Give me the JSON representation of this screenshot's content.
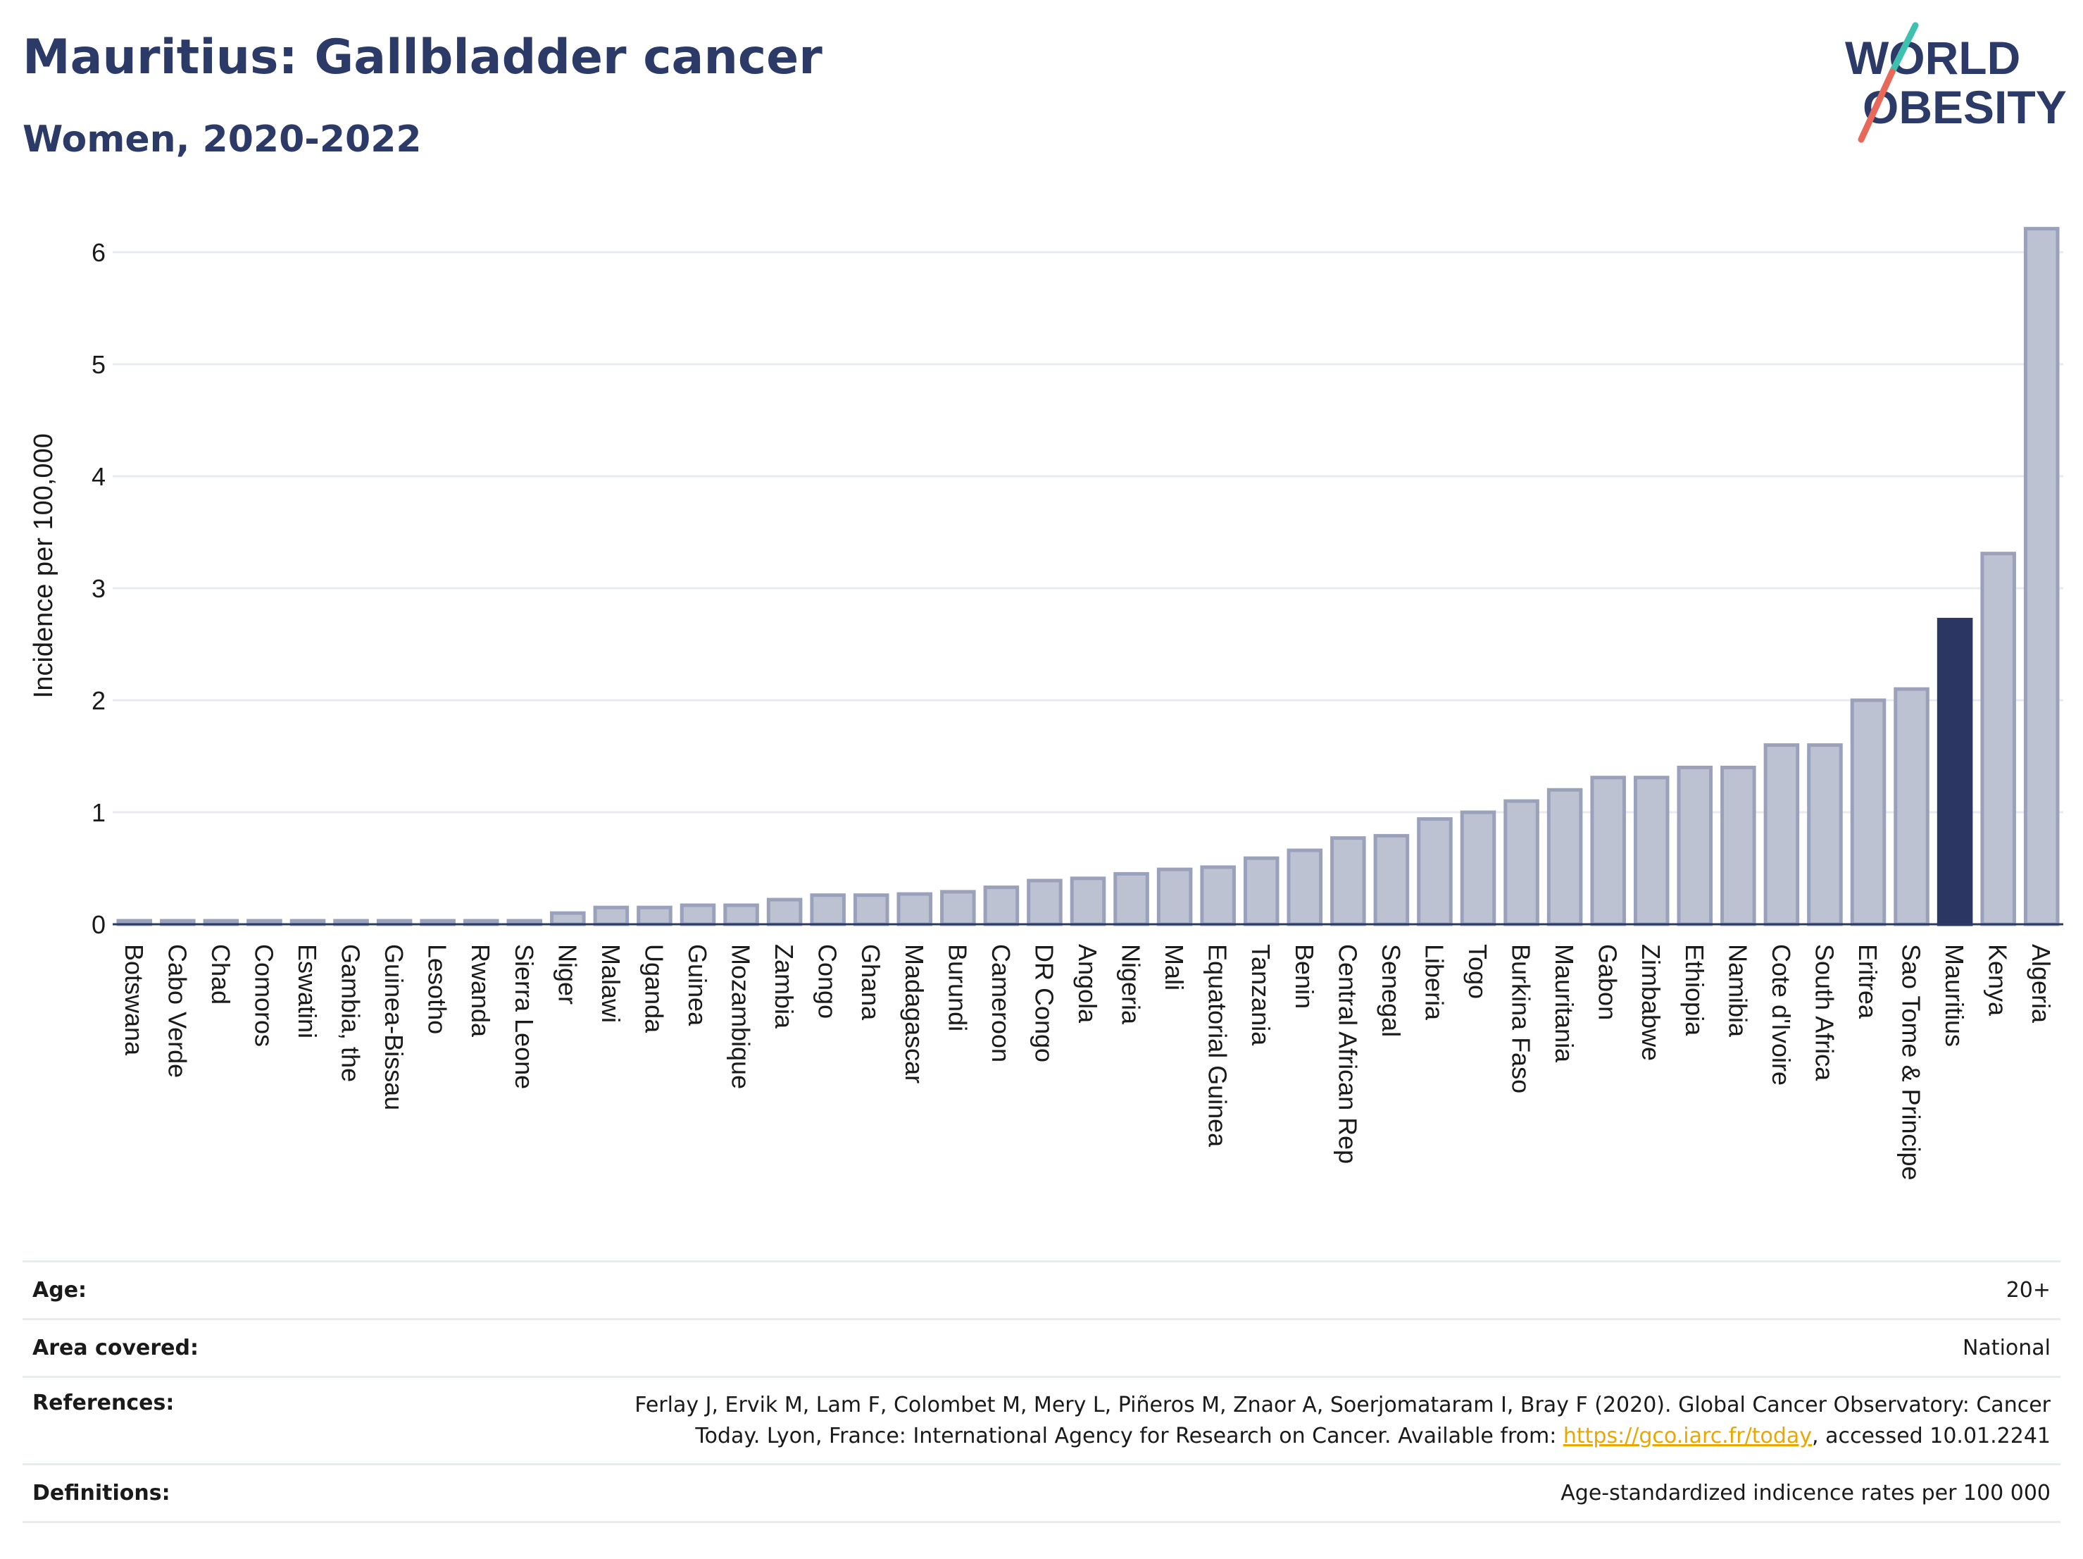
{
  "title": "Mauritius: Gallbladder cancer",
  "subtitle": "Women, 2020-2022",
  "logo": {
    "line1": "WORLD",
    "line2": "OBESITY"
  },
  "colors": {
    "bar": "#bcc2d1",
    "bar_stroke": "#9aa2bb",
    "highlight": "#2b3663",
    "title": "#2b3a67",
    "link": "#e8a800"
  },
  "chart_data": {
    "type": "bar",
    "ylabel": "Incidence per 100,000",
    "xlabel": "",
    "ylim": [
      0,
      6.4
    ],
    "yticks": [
      0,
      1,
      2,
      3,
      4,
      5,
      6
    ],
    "grid": true,
    "highlight": "Mauritius",
    "categories": [
      "Botswana",
      "Cabo Verde",
      "Chad",
      "Comoros",
      "Eswatini",
      "Gambia, the",
      "Guinea-Bissau",
      "Lesotho",
      "Rwanda",
      "Sierra Leone",
      "Niger",
      "Malawi",
      "Uganda",
      "Guinea",
      "Mozambique",
      "Zambia",
      "Congo",
      "Ghana",
      "Madagascar",
      "Burundi",
      "Cameroon",
      "DR Congo",
      "Angola",
      "Nigeria",
      "Mali",
      "Equatorial Guinea",
      "Tanzania",
      "Benin",
      "Central African Rep",
      "Senegal",
      "Liberia",
      "Togo",
      "Burkina Faso",
      "Mauritania",
      "Gabon",
      "Zimbabwe",
      "Ethiopia",
      "Namibia",
      "Cote d'Ivoire",
      "South Africa",
      "Eritrea",
      "Sao Tome & Principe",
      "Mauritius",
      "Kenya",
      "Algeria"
    ],
    "values": [
      0.02,
      0.02,
      0.02,
      0.02,
      0.02,
      0.02,
      0.02,
      0.02,
      0.02,
      0.02,
      0.1,
      0.15,
      0.15,
      0.17,
      0.17,
      0.22,
      0.26,
      0.26,
      0.27,
      0.29,
      0.33,
      0.39,
      0.41,
      0.45,
      0.49,
      0.51,
      0.59,
      0.66,
      0.77,
      0.79,
      0.94,
      1.0,
      1.1,
      1.2,
      1.31,
      1.31,
      1.4,
      1.4,
      1.6,
      1.6,
      2.0,
      2.1,
      2.72,
      3.31,
      6.21
    ]
  },
  "info": {
    "age_label": "Age:",
    "age_value": "20+",
    "area_label": "Area covered:",
    "area_value": "National",
    "ref_label": "References:",
    "ref_text_1": "Ferlay J, Ervik M, Lam F, Colombet M, Mery L, Piñeros M, Znaor A, Soerjomataram I, Bray F (2020). Global Cancer Observatory: Cancer",
    "ref_text_2": "Today. Lyon, France: International Agency for Research on Cancer. Available from: ",
    "ref_link": "https://gco.iarc.fr/today",
    "ref_text_3": ", accessed 10.01.2241",
    "def_label": "Definitions:",
    "def_value": "Age-standardized indicence rates per 100 000"
  }
}
